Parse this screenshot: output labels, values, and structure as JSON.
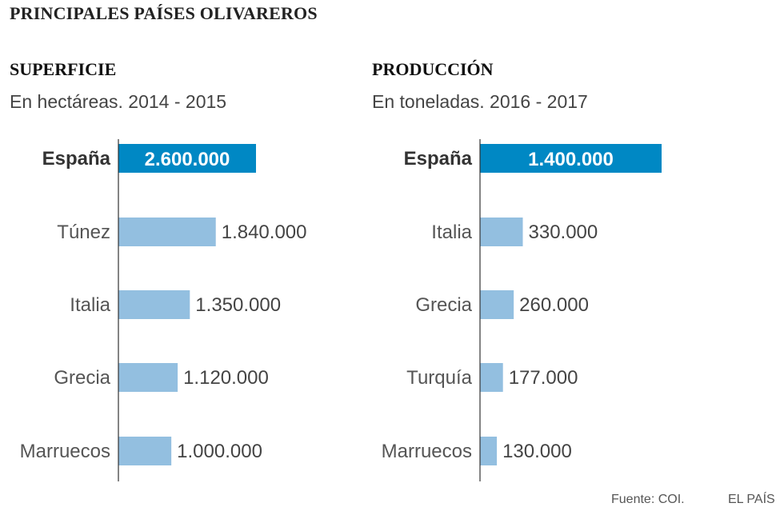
{
  "title": "PRINCIPALES PAÍSES OLIVAREROS",
  "footer": {
    "source": "Fuente: COI.",
    "brand": "EL PAÍS"
  },
  "colors": {
    "highlight": "#0088c4",
    "bar": "#93bfe0",
    "axis": "#333333"
  },
  "chart_data": [
    {
      "type": "bar",
      "orientation": "horizontal",
      "title": "SUPERFICIE",
      "subtitle": "En hectáreas. 2014 - 2015",
      "categories": [
        "España",
        "Túnez",
        "Italia",
        "Grecia",
        "Marruecos"
      ],
      "values": [
        2600000,
        1840000,
        1350000,
        1120000,
        1000000
      ],
      "labels": [
        "2.600.000",
        "1.840.000",
        "1.350.000",
        "1.120.000",
        "1.000.000"
      ],
      "highlight_index": 0,
      "xlim": [
        0,
        2600000
      ]
    },
    {
      "type": "bar",
      "orientation": "horizontal",
      "title": "PRODUCCIÓN",
      "subtitle": "En toneladas. 2016 - 2017",
      "categories": [
        "España",
        "Italia",
        "Grecia",
        "Turquía",
        "Marruecos"
      ],
      "values": [
        1400000,
        330000,
        260000,
        177000,
        130000
      ],
      "labels": [
        "1.400.000",
        "330.000",
        "260.000",
        "177.000",
        "130.000"
      ],
      "highlight_index": 0,
      "xlim": [
        0,
        1400000
      ]
    }
  ]
}
